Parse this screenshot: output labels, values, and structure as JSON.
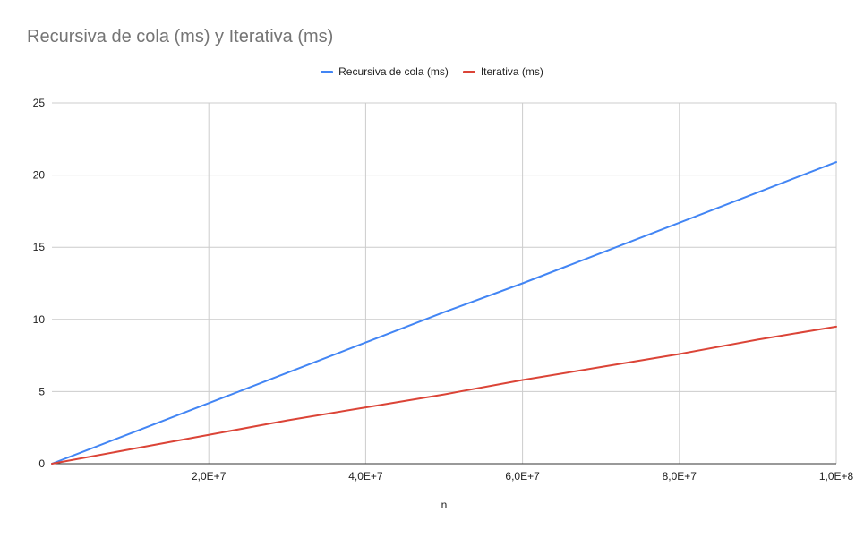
{
  "chart_data": {
    "type": "line",
    "title": "Recursiva de cola (ms) y Iterativa (ms)",
    "xlabel": "n",
    "ylabel": "",
    "xlim": [
      0,
      100000000
    ],
    "ylim": [
      0,
      25
    ],
    "x_ticks": [
      {
        "value": 20000000,
        "label": "2,0E+7"
      },
      {
        "value": 40000000,
        "label": "4,0E+7"
      },
      {
        "value": 60000000,
        "label": "6,0E+7"
      },
      {
        "value": 80000000,
        "label": "8,0E+7"
      },
      {
        "value": 100000000,
        "label": "1,0E+8"
      }
    ],
    "y_ticks": [
      {
        "value": 0,
        "label": "0"
      },
      {
        "value": 5,
        "label": "5"
      },
      {
        "value": 10,
        "label": "10"
      },
      {
        "value": 15,
        "label": "15"
      },
      {
        "value": 20,
        "label": "20"
      },
      {
        "value": 25,
        "label": "25"
      }
    ],
    "grid": true,
    "legend_position": "top-center",
    "series": [
      {
        "name": "Recursiva de cola (ms)",
        "color": "#4285f4",
        "x": [
          0,
          10000000,
          20000000,
          30000000,
          40000000,
          50000000,
          60000000,
          70000000,
          80000000,
          90000000,
          100000000
        ],
        "y": [
          0,
          2.1,
          4.2,
          6.3,
          8.4,
          10.5,
          12.5,
          14.6,
          16.7,
          18.8,
          20.9
        ]
      },
      {
        "name": "Iterativa (ms)",
        "color": "#db4437",
        "x": [
          0,
          10000000,
          20000000,
          30000000,
          40000000,
          50000000,
          60000000,
          70000000,
          80000000,
          90000000,
          100000000
        ],
        "y": [
          0,
          1.0,
          2.0,
          3.0,
          3.9,
          4.8,
          5.8,
          6.7,
          7.6,
          8.6,
          9.5
        ]
      }
    ]
  }
}
